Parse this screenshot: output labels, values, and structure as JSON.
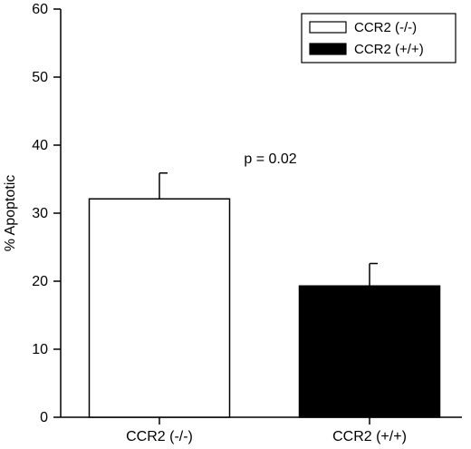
{
  "chart_data": {
    "type": "bar",
    "categories": [
      "CCR2 (-/-)",
      "CCR2 (+/+)"
    ],
    "values": [
      32.1,
      19.3
    ],
    "errors": [
      3.8,
      3.3
    ],
    "bar_colors": [
      "#ffffff",
      "#000000"
    ],
    "title": "",
    "xlabel": "",
    "ylabel": "% Apoptotic",
    "ylim": [
      0,
      60
    ],
    "yticks": [
      0,
      10,
      20,
      30,
      40,
      50,
      60
    ],
    "grid": false,
    "legend": {
      "placement": "top-right",
      "entries": [
        {
          "label": "CCR2 (-/-)",
          "color": "#ffffff"
        },
        {
          "label": "CCR2 (+/+)",
          "color": "#000000"
        }
      ]
    },
    "annotations": [
      {
        "text": "p = 0.02",
        "x": 0.5,
        "y": 38
      }
    ]
  }
}
